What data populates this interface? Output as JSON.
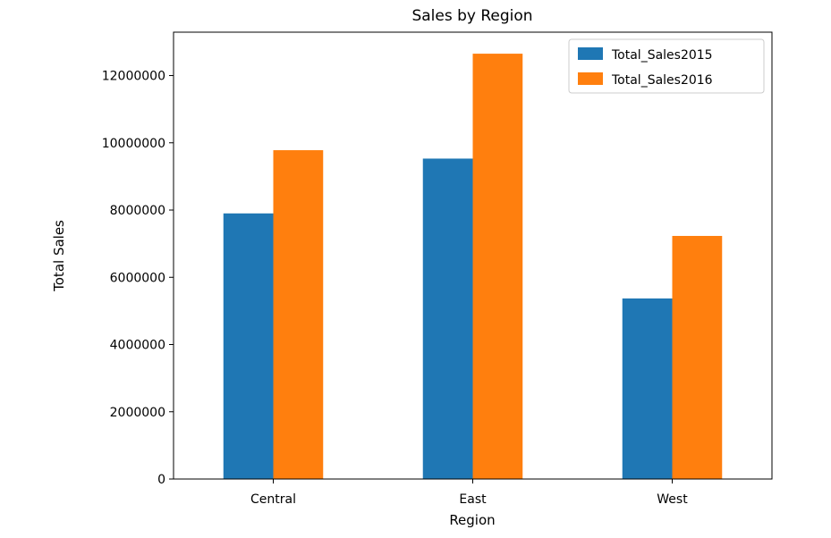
{
  "chart_data": {
    "type": "bar",
    "title": "Sales by Region",
    "xlabel": "Region",
    "ylabel": "Total Sales",
    "categories": [
      "Central",
      "East",
      "West"
    ],
    "series": [
      {
        "name": "Total_Sales2015",
        "color": "#1f77b4",
        "values": [
          7900000,
          9530000,
          5370000
        ]
      },
      {
        "name": "Total_Sales2016",
        "color": "#ff7f0e",
        "values": [
          9780000,
          12650000,
          7230000
        ]
      }
    ],
    "ylim": [
      0,
      13290000
    ],
    "yticks": [
      0,
      2000000,
      4000000,
      6000000,
      8000000,
      10000000,
      12000000
    ],
    "ytick_labels": [
      "0",
      "2000000",
      "4000000",
      "6000000",
      "8000000",
      "10000000",
      "12000000"
    ],
    "grid": false,
    "legend_position": "top-right"
  }
}
